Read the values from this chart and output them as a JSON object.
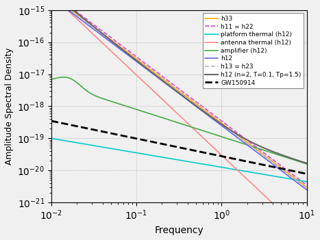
{
  "title": "",
  "xlabel": "Frequency",
  "ylabel": "Amplitude Spectral Density",
  "xlim": [
    0.01,
    10
  ],
  "ylim": [
    1e-21,
    1e-15
  ],
  "background_color": "#f0f0f0",
  "legend_entries": [
    "h33",
    "h11 = h22",
    "platform thermal (h12)",
    "antenna thermal (h12)",
    "amplifier (h12)",
    "h12",
    "h13 = h23",
    "h12 (n=2, T=0.1, Tp=1.5)",
    "GW150914"
  ],
  "colors": {
    "h33": "#FFA500",
    "h11h22": "#DD44DD",
    "platform": "#00CCCC",
    "antenna": "#FF8888",
    "amplifier": "#44AA44",
    "h12": "#6666EE",
    "h13h23": "#BBBBBB",
    "h12_special": "#666666",
    "gw": "#000000"
  },
  "grid_color": "#aaaaaa"
}
